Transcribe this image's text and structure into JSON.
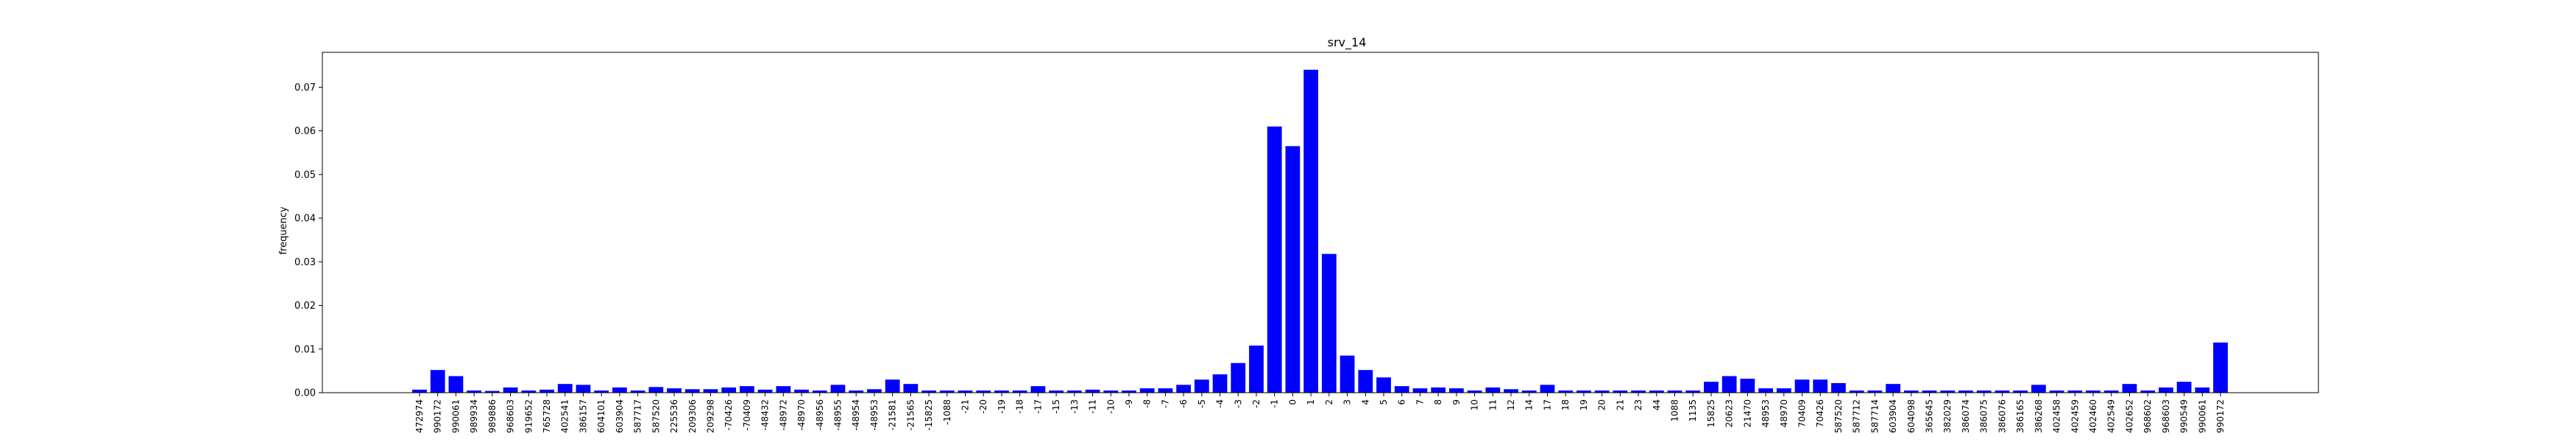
{
  "chart_data": {
    "type": "bar",
    "title": "srv_14",
    "xlabel": "",
    "ylabel": "frequency",
    "ylim": [
      0,
      0.078
    ],
    "yticks": [
      0.0,
      0.01,
      0.02,
      0.03,
      0.04,
      0.05,
      0.06,
      0.07
    ],
    "ytick_labels": [
      "0.00",
      "0.01",
      "0.02",
      "0.03",
      "0.04",
      "0.05",
      "0.06",
      "0.07"
    ],
    "grid": false,
    "bar_color": "#0000ff",
    "categories": [
      "472974",
      "990172",
      "990061",
      "989934",
      "989886",
      "968603",
      "919652",
      "765728",
      "402541",
      "386157",
      "604101",
      "603904",
      "587717",
      "587520",
      "225536",
      "209306",
      "209298",
      "-70426",
      "-70409",
      "-48432",
      "-48972",
      "-48970",
      "-48956",
      "-48955",
      "-48954",
      "-48953",
      "-21581",
      "-21565",
      "-15825",
      "-1088",
      "-21",
      "-20",
      "-19",
      "-18",
      "-17",
      "-15",
      "-13",
      "-11",
      "-10",
      "-9",
      "-8",
      "-7",
      "-6",
      "-5",
      "-4",
      "-3",
      "-2",
      "-1",
      "0",
      "1",
      "2",
      "3",
      "4",
      "5",
      "6",
      "7",
      "8",
      "9",
      "10",
      "11",
      "12",
      "14",
      "17",
      "18",
      "19",
      "20",
      "21",
      "23",
      "44",
      "1088",
      "1135",
      "15825",
      "20623",
      "21470",
      "48953",
      "48970",
      "70409",
      "70426",
      "587520",
      "587712",
      "587714",
      "603904",
      "604098",
      "365645",
      "382029",
      "386074",
      "386075",
      "386076",
      "386165",
      "386268",
      "402458",
      "402459",
      "402460",
      "402549",
      "402652",
      "968602",
      "968603",
      "990549",
      "990061",
      "990172"
    ],
    "values": [
      0.0007,
      0.0052,
      0.0038,
      0.0005,
      0.0004,
      0.0012,
      0.0005,
      0.0007,
      0.002,
      0.0018,
      0.0005,
      0.0012,
      0.0005,
      0.0013,
      0.001,
      0.0008,
      0.0008,
      0.0012,
      0.0015,
      0.0007,
      0.0015,
      0.0007,
      0.0005,
      0.0018,
      0.0005,
      0.0008,
      0.003,
      0.002,
      0.0005,
      0.0005,
      0.0005,
      0.0005,
      0.0005,
      0.0005,
      0.0015,
      0.0005,
      0.0005,
      0.0007,
      0.0005,
      0.0005,
      0.001,
      0.001,
      0.0018,
      0.003,
      0.0042,
      0.0068,
      0.0108,
      0.061,
      0.0565,
      0.074,
      0.0318,
      0.0085,
      0.0052,
      0.0035,
      0.0015,
      0.001,
      0.0012,
      0.001,
      0.0005,
      0.0012,
      0.0008,
      0.0005,
      0.0018,
      0.0005,
      0.0005,
      0.0005,
      0.0005,
      0.0005,
      0.0005,
      0.0005,
      0.0005,
      0.0025,
      0.0038,
      0.0032,
      0.001,
      0.001,
      0.003,
      0.003,
      0.0022,
      0.0005,
      0.0005,
      0.002,
      0.0005,
      0.0005,
      0.0005,
      0.0005,
      0.0005,
      0.0005,
      0.0005,
      0.0018,
      0.0005,
      0.0005,
      0.0005,
      0.0005,
      0.002,
      0.0005,
      0.0012,
      0.0025,
      0.0012,
      0.0115
    ]
  }
}
